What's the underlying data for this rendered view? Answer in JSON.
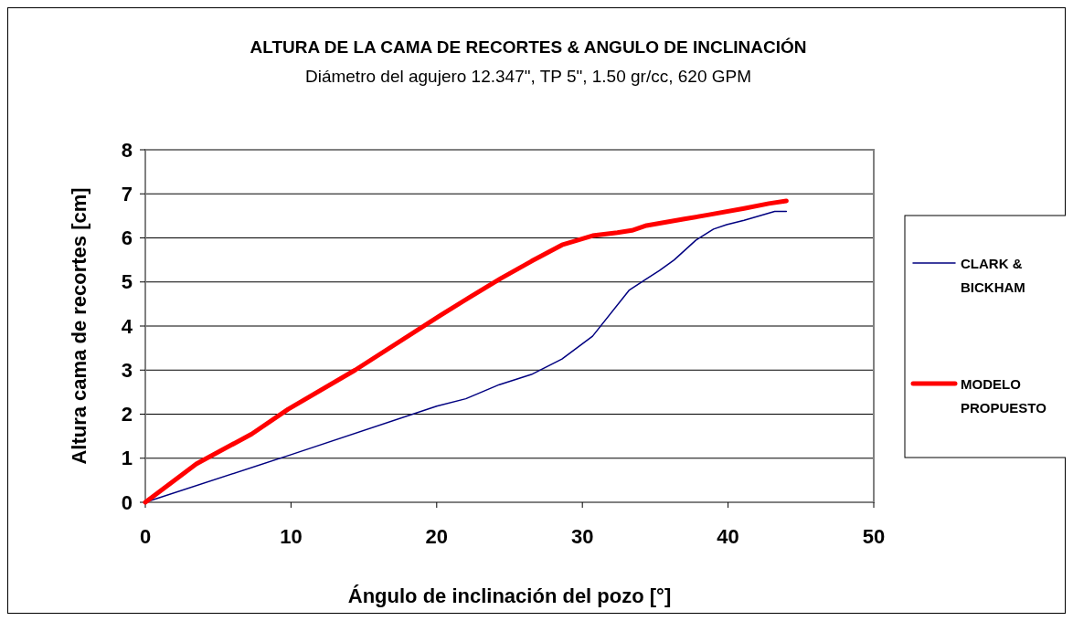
{
  "chart_data": {
    "type": "line",
    "title": "ALTURA DE LA CAMA DE RECORTES & ANGULO DE INCLINACIÓN",
    "subtitle": "Diámetro del agujero 12.347\", TP 5\", 1.50 gr/cc, 620 GPM",
    "xlabel": "Ángulo de inclinación del pozo [°]",
    "ylabel": "Altura cama de recortes [cm]",
    "xlim": [
      0,
      50
    ],
    "xticks": [
      0,
      10,
      20,
      30,
      40,
      50
    ],
    "ylim": [
      0,
      8
    ],
    "yticks": [
      0,
      1,
      2,
      3,
      4,
      5,
      6,
      7,
      8
    ],
    "grid": "y",
    "legend": "right",
    "marker": "none",
    "series": [
      {
        "name": "CLARK & BICKHAM",
        "color": "#000080",
        "x": [
          0,
          10,
          20,
          22,
          24.3,
          26.5,
          28.6,
          30.7,
          33.2,
          34.3,
          35.3,
          36.3,
          37.8,
          39.0,
          39.9,
          41.1,
          43.2,
          44.0
        ],
        "values": [
          0,
          1.08,
          2.18,
          2.35,
          2.67,
          2.9,
          3.25,
          3.77,
          4.81,
          5.05,
          5.26,
          5.5,
          5.95,
          6.2,
          6.3,
          6.4,
          6.6,
          6.6
        ]
      },
      {
        "name": "MODELO PROPUESTO",
        "color": "#ff0000",
        "x": [
          0,
          3.5,
          7.3,
          9.8,
          14.4,
          20.2,
          22.3,
          24.4,
          26.5,
          28.6,
          30.7,
          32.4,
          33.4,
          34.4,
          37.0,
          38.6,
          41.1,
          42.8,
          44.0
        ],
        "values": [
          0,
          0.87,
          1.55,
          2.11,
          3.0,
          4.23,
          4.66,
          5.08,
          5.47,
          5.84,
          6.05,
          6.12,
          6.17,
          6.28,
          6.43,
          6.52,
          6.67,
          6.78,
          6.84
        ]
      }
    ]
  }
}
